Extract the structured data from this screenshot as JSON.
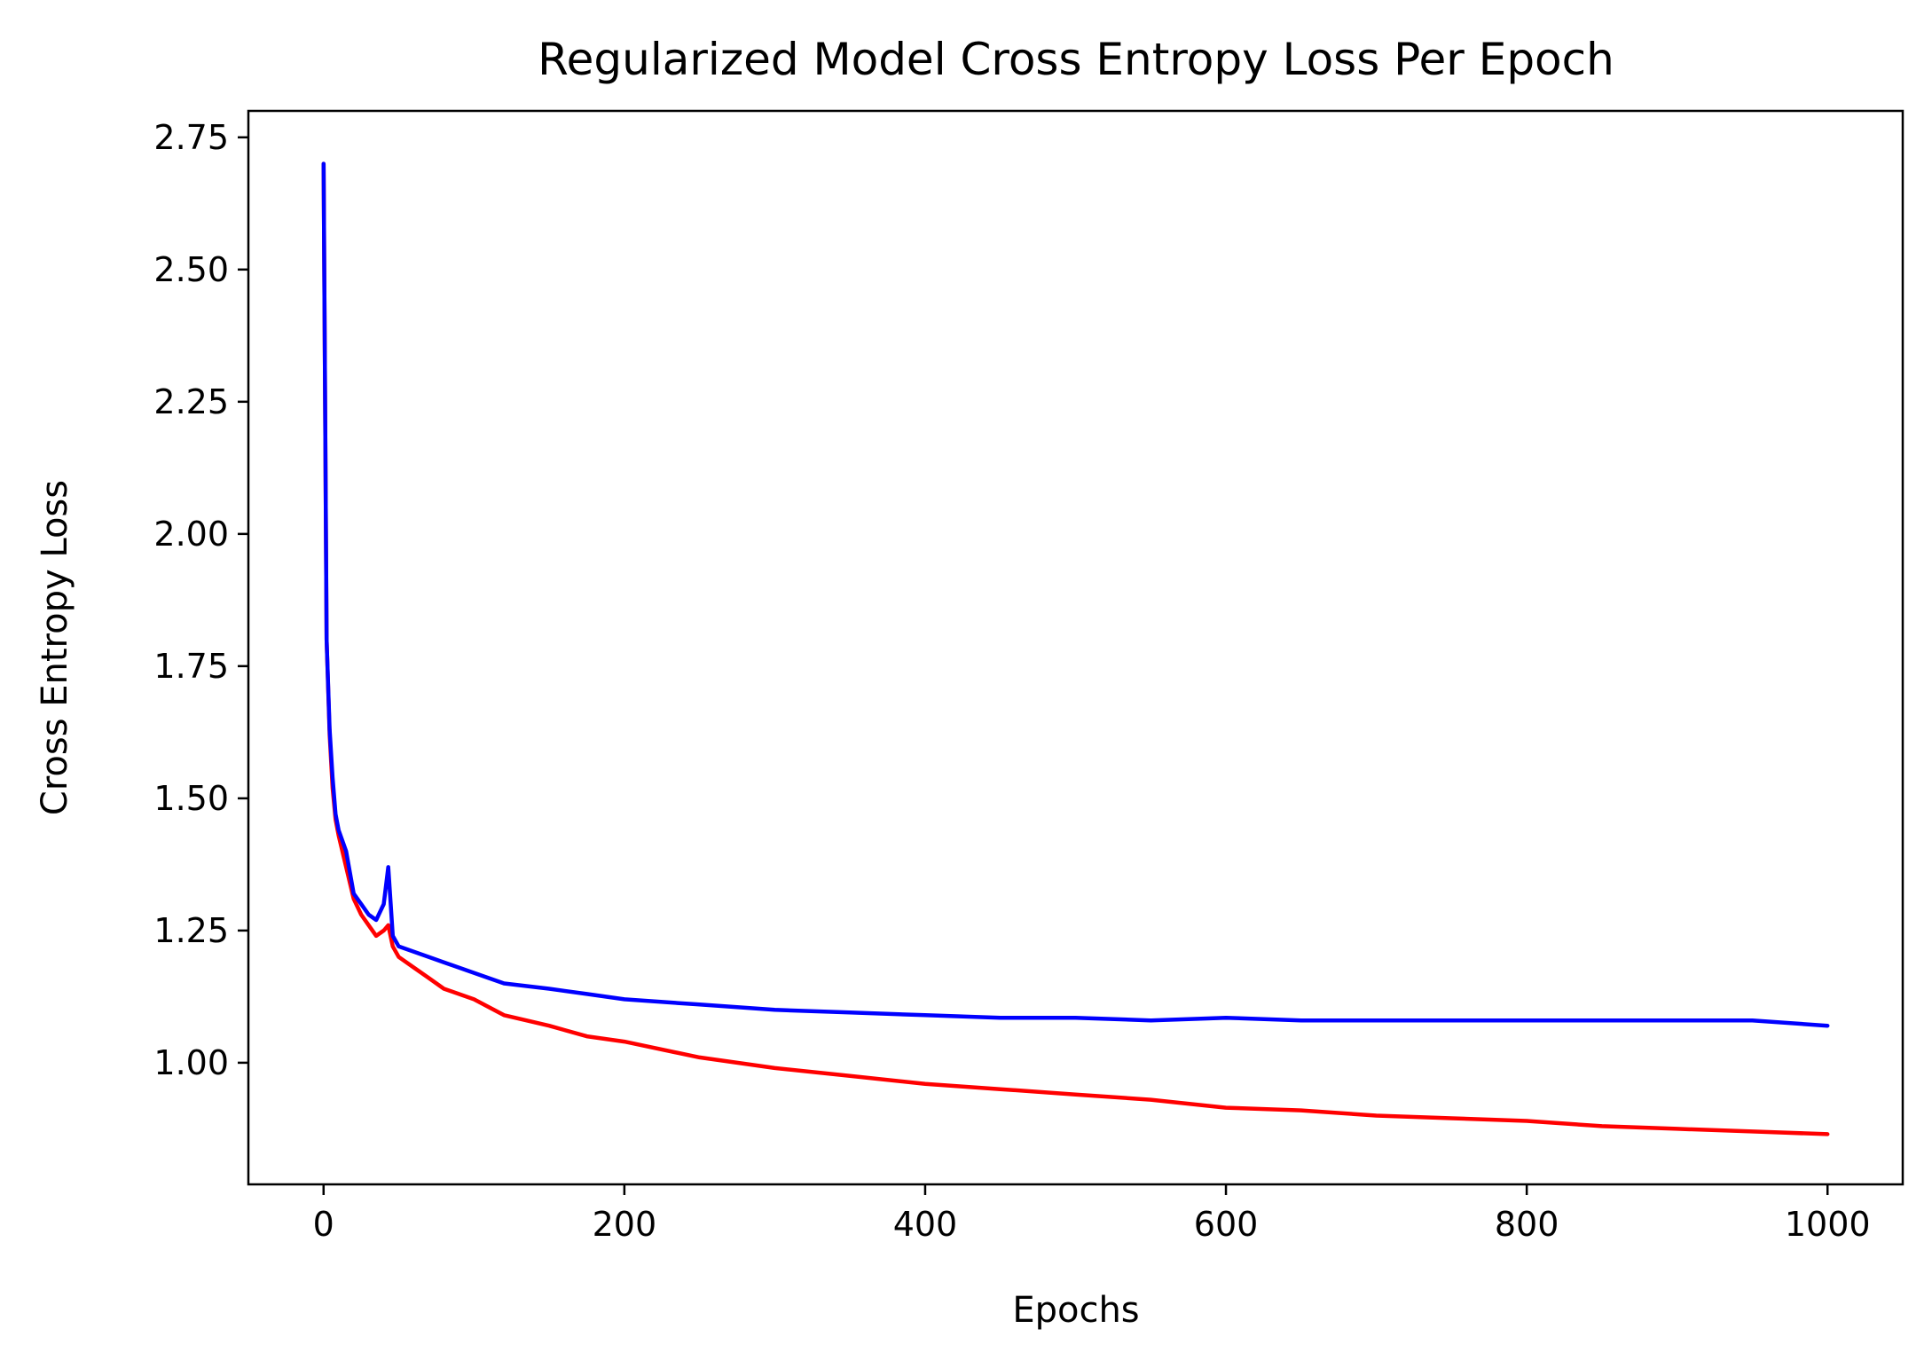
{
  "chart_data": {
    "type": "line",
    "title": "Regularized Model Cross Entropy Loss Per Epoch",
    "xlabel": "Epochs",
    "ylabel": "Cross Entropy Loss",
    "xlim": [
      -50,
      1050
    ],
    "ylim": [
      0.77,
      2.8
    ],
    "xticks": [
      0,
      200,
      400,
      600,
      800,
      1000
    ],
    "xtick_labels": [
      "0",
      "200",
      "400",
      "600",
      "800",
      "1000"
    ],
    "yticks": [
      1.0,
      1.25,
      1.5,
      1.75,
      2.0,
      2.25,
      2.5,
      2.75
    ],
    "ytick_labels": [
      "1.00",
      "1.25",
      "1.50",
      "1.75",
      "2.00",
      "2.25",
      "2.50",
      "2.75"
    ],
    "grid": false,
    "legend": "none",
    "series": [
      {
        "color": "#ff0000",
        "x": [
          0,
          2,
          4,
          6,
          8,
          10,
          15,
          20,
          25,
          30,
          35,
          40,
          43,
          46,
          50,
          60,
          70,
          80,
          100,
          120,
          150,
          175,
          200,
          250,
          300,
          350,
          400,
          450,
          500,
          550,
          600,
          650,
          700,
          750,
          800,
          850,
          900,
          950,
          1000
        ],
        "values": [
          2.7,
          1.8,
          1.62,
          1.52,
          1.46,
          1.43,
          1.37,
          1.31,
          1.28,
          1.26,
          1.24,
          1.25,
          1.26,
          1.22,
          1.2,
          1.18,
          1.16,
          1.14,
          1.12,
          1.09,
          1.07,
          1.05,
          1.04,
          1.01,
          0.99,
          0.975,
          0.96,
          0.95,
          0.94,
          0.93,
          0.915,
          0.91,
          0.9,
          0.895,
          0.89,
          0.88,
          0.875,
          0.87,
          0.865
        ]
      },
      {
        "color": "#0000ff",
        "x": [
          0,
          2,
          4,
          6,
          8,
          10,
          15,
          20,
          25,
          30,
          35,
          40,
          43,
          46,
          50,
          60,
          70,
          80,
          100,
          120,
          150,
          175,
          200,
          250,
          300,
          350,
          400,
          450,
          500,
          550,
          600,
          650,
          700,
          750,
          800,
          850,
          900,
          950,
          1000
        ],
        "values": [
          2.7,
          1.8,
          1.63,
          1.54,
          1.47,
          1.44,
          1.4,
          1.32,
          1.3,
          1.28,
          1.27,
          1.3,
          1.37,
          1.24,
          1.22,
          1.21,
          1.2,
          1.19,
          1.17,
          1.15,
          1.14,
          1.13,
          1.12,
          1.11,
          1.1,
          1.095,
          1.09,
          1.085,
          1.085,
          1.08,
          1.085,
          1.08,
          1.08,
          1.08,
          1.08,
          1.08,
          1.08,
          1.08,
          1.07
        ]
      }
    ]
  }
}
